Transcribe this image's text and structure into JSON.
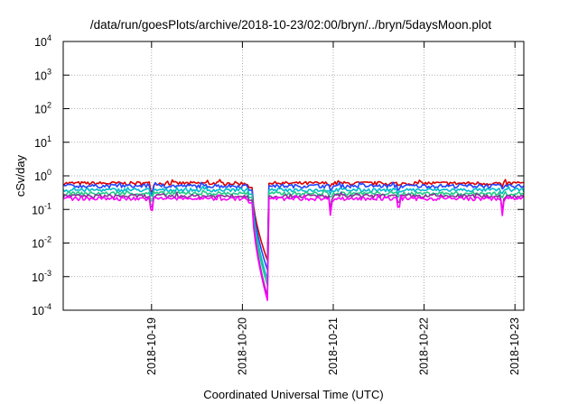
{
  "chart_data": {
    "type": "line",
    "title": "/data/run/goesPlots/archive/2018-10-23/02:00/bryn/../bryn/5daysMoon.plot",
    "xlabel": "Coordinated Universal Time (UTC)",
    "ylabel": "cSv/day",
    "y_scale": "log",
    "ylim": [
      0.0001,
      10000
    ],
    "xlim": [
      "2018-10-18 00:00",
      "2018-10-23 02:00"
    ],
    "grid": "dotted, both axes",
    "x_ticks": [
      "2018-10-19",
      "2018-10-20",
      "2018-10-21",
      "2018-10-22",
      "2018-10-23"
    ],
    "y_ticks": [
      {
        "base": "10",
        "exp": "-4",
        "value": 0.0001
      },
      {
        "base": "10",
        "exp": "-3",
        "value": 0.001
      },
      {
        "base": "10",
        "exp": "-2",
        "value": 0.01
      },
      {
        "base": "10",
        "exp": "-1",
        "value": 0.1
      },
      {
        "base": "10",
        "exp": "0",
        "value": 1
      },
      {
        "base": "10",
        "exp": "1",
        "value": 10
      },
      {
        "base": "10",
        "exp": "2",
        "value": 100
      },
      {
        "base": "10",
        "exp": "3",
        "value": 1000
      },
      {
        "base": "10",
        "exp": "4",
        "value": 10000
      }
    ],
    "dip_days": [
      1.0,
      2.1,
      2.97,
      3.72,
      4.86
    ],
    "series": [
      {
        "color": "#dd0000",
        "level": 0.6,
        "dip_min": 0.0024,
        "fill": 0.95
      },
      {
        "color": "#2244ff",
        "level": 0.5,
        "dip_min": 0.0012,
        "fill": 0.95
      },
      {
        "color": "#00bbcc",
        "level": 0.38,
        "dip_min": 0.0006,
        "fill": 0.95
      },
      {
        "color": "#22cc88",
        "level": 0.3,
        "dip_min": 0.0004,
        "fill": 0.95
      },
      {
        "color": "#883399",
        "level": 0.25,
        "dip_min": 0.00018,
        "fill": 0.95
      },
      {
        "color": "#ff00ff",
        "level": 0.21,
        "dip_min": 0.00014,
        "fill": 0.95
      }
    ]
  }
}
